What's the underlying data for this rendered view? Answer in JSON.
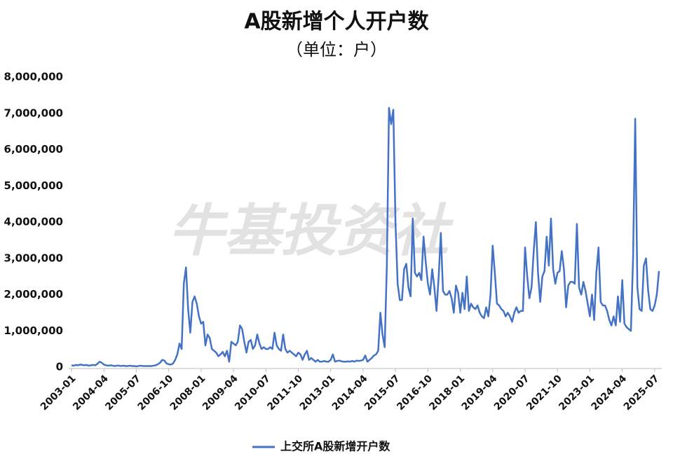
{
  "chart_data": {
    "type": "line",
    "title": "A股新增个人开户数",
    "subtitle": "（单位：户）",
    "watermark": "牛基投资社",
    "categories": [
      "2003-01",
      null,
      null,
      null,
      null,
      null,
      null,
      null,
      null,
      null,
      null,
      null,
      null,
      null,
      null,
      "2004-04",
      null,
      null,
      null,
      null,
      null,
      null,
      null,
      null,
      null,
      null,
      null,
      null,
      null,
      null,
      "2005-07",
      null,
      null,
      null,
      null,
      null,
      null,
      null,
      null,
      null,
      null,
      null,
      null,
      null,
      null,
      "2006-10",
      null,
      null,
      null,
      null,
      null,
      null,
      null,
      null,
      null,
      null,
      null,
      null,
      null,
      null,
      "2008-01",
      null,
      null,
      null,
      null,
      null,
      null,
      null,
      null,
      null,
      null,
      null,
      null,
      null,
      null,
      "2009-04",
      null,
      null,
      null,
      null,
      null,
      null,
      null,
      null,
      null,
      null,
      null,
      null,
      null,
      null,
      "2010-07",
      null,
      null,
      null,
      null,
      null,
      null,
      null,
      null,
      null,
      null,
      null,
      null,
      null,
      null,
      "2011-10",
      null,
      null,
      null,
      null,
      null,
      null,
      null,
      null,
      null,
      null,
      null,
      null,
      null,
      null,
      "2013-01",
      null,
      null,
      null,
      null,
      null,
      null,
      null,
      null,
      null,
      null,
      null,
      null,
      null,
      null,
      "2014-04",
      null,
      null,
      null,
      null,
      null,
      null,
      null,
      null,
      null,
      null,
      null,
      null,
      null,
      null,
      "2015-07",
      null,
      null,
      null,
      null,
      null,
      null,
      null,
      null,
      null,
      null,
      null,
      null,
      null,
      null,
      "2016-10",
      null,
      null,
      null,
      null,
      null,
      null,
      null,
      null,
      null,
      null,
      null,
      null,
      null,
      null,
      "2018-01",
      null,
      null,
      null,
      null,
      null,
      null,
      null,
      null,
      null,
      null,
      null,
      null,
      null,
      null,
      "2019-04",
      null,
      null,
      null,
      null,
      null,
      null,
      null,
      null,
      null,
      null,
      null,
      null,
      null,
      null,
      "2020-07",
      null,
      null,
      null,
      null,
      null,
      null,
      null,
      null,
      null,
      null,
      null,
      null,
      null,
      null,
      "2021-10",
      null,
      null,
      null,
      null,
      null,
      null,
      null,
      null,
      null,
      null,
      null,
      null,
      null,
      null,
      "2023-01",
      null,
      null,
      null,
      null,
      null,
      null,
      null,
      null,
      null,
      null,
      null,
      null,
      null,
      null,
      "2024-04",
      null,
      null,
      null,
      null,
      null,
      null,
      null,
      null,
      null,
      null,
      null,
      null,
      null,
      null,
      "2025-07",
      null,
      null
    ],
    "series": [
      {
        "name": "上交所A股新增开户数",
        "color": "#4472c4",
        "values": [
          50000,
          40000,
          60000,
          50000,
          70000,
          60000,
          50000,
          60000,
          40000,
          50000,
          60000,
          50000,
          90000,
          150000,
          120000,
          70000,
          50000,
          40000,
          50000,
          40000,
          30000,
          40000,
          40000,
          30000,
          40000,
          30000,
          30000,
          40000,
          30000,
          30000,
          20000,
          30000,
          40000,
          30000,
          30000,
          30000,
          30000,
          30000,
          40000,
          50000,
          80000,
          120000,
          200000,
          180000,
          100000,
          80000,
          70000,
          100000,
          200000,
          350000,
          650000,
          500000,
          2300000,
          2750000,
          1600000,
          950000,
          1800000,
          1950000,
          1750000,
          1400000,
          1200000,
          1250000,
          600000,
          900000,
          800000,
          500000,
          450000,
          400000,
          300000,
          350000,
          420000,
          300000,
          450000,
          150000,
          700000,
          650000,
          600000,
          700000,
          1150000,
          1050000,
          700000,
          400000,
          700000,
          750000,
          500000,
          600000,
          900000,
          650000,
          500000,
          550000,
          500000,
          500000,
          550000,
          500000,
          950000,
          600000,
          500000,
          450000,
          900000,
          500000,
          400000,
          450000,
          400000,
          350000,
          300000,
          400000,
          350000,
          200000,
          350000,
          450000,
          200000,
          250000,
          200000,
          150000,
          200000,
          150000,
          150000,
          170000,
          150000,
          150000,
          200000,
          350000,
          150000,
          170000,
          180000,
          160000,
          150000,
          150000,
          160000,
          150000,
          170000,
          150000,
          180000,
          170000,
          180000,
          200000,
          320000,
          150000,
          200000,
          250000,
          320000,
          350000,
          450000,
          1500000,
          900000,
          550000,
          2800000,
          7150000,
          6700000,
          7100000,
          4000000,
          2300000,
          1850000,
          1850000,
          2700000,
          2850000,
          2200000,
          1950000,
          4100000,
          2600000,
          2500000,
          2600000,
          2400000,
          3600000,
          2900000,
          2300000,
          2000000,
          2700000,
          2200000,
          1550000,
          2500000,
          3700000,
          2100000,
          2000000,
          2000000,
          2100000,
          1900000,
          1500000,
          2250000,
          2050000,
          1500000,
          2050000,
          1600000,
          2500000,
          1550000,
          1750000,
          1650000,
          1600000,
          1700000,
          1500000,
          1400000,
          1350000,
          1650000,
          1400000,
          2000000,
          3350000,
          2600000,
          1750000,
          1700000,
          1600000,
          1550000,
          1400000,
          1500000,
          1400000,
          1250000,
          1500000,
          1650000,
          1500000,
          1550000,
          1550000,
          3300000,
          2500000,
          1900000,
          2200000,
          3200000,
          4000000,
          2600000,
          1800000,
          2500000,
          2650000,
          3600000,
          2800000,
          4100000,
          2700000,
          2300000,
          2600000,
          2650000,
          3200000,
          2700000,
          1650000,
          2250000,
          2350000,
          2350000,
          2300000,
          3950000,
          2200000,
          2000000,
          2350000,
          2100000,
          1750000,
          1400000,
          2000000,
          1300000,
          2600000,
          3300000,
          1800000,
          1700000,
          1700000,
          1550000,
          1300000,
          1150000,
          1400000,
          1150000,
          1950000,
          1250000,
          2400000,
          1200000,
          1100000,
          1050000,
          1000000,
          3000000,
          6850000,
          2200000,
          1600000,
          1550000,
          2800000,
          3000000,
          2100000,
          1600000,
          1550000,
          1700000,
          2000000,
          2650000
        ]
      }
    ],
    "ylim": [
      0,
      8000000
    ],
    "yticks": [
      0,
      {
        "value": 1000000,
        "label": "1,000,000"
      },
      {
        "value": 2000000,
        "label": "2,000,000"
      },
      {
        "value": 3000000,
        "label": "3,000,000"
      },
      {
        "value": 4000000,
        "label": "4,000,000"
      },
      {
        "value": 5000000,
        "label": "5,000,000"
      },
      {
        "value": 6000000,
        "label": "6,000,000"
      },
      {
        "value": 7000000,
        "label": "7,000,000"
      },
      {
        "value": 8000000,
        "label": "8,000,000"
      }
    ],
    "grid": false,
    "legend": "bottom"
  }
}
